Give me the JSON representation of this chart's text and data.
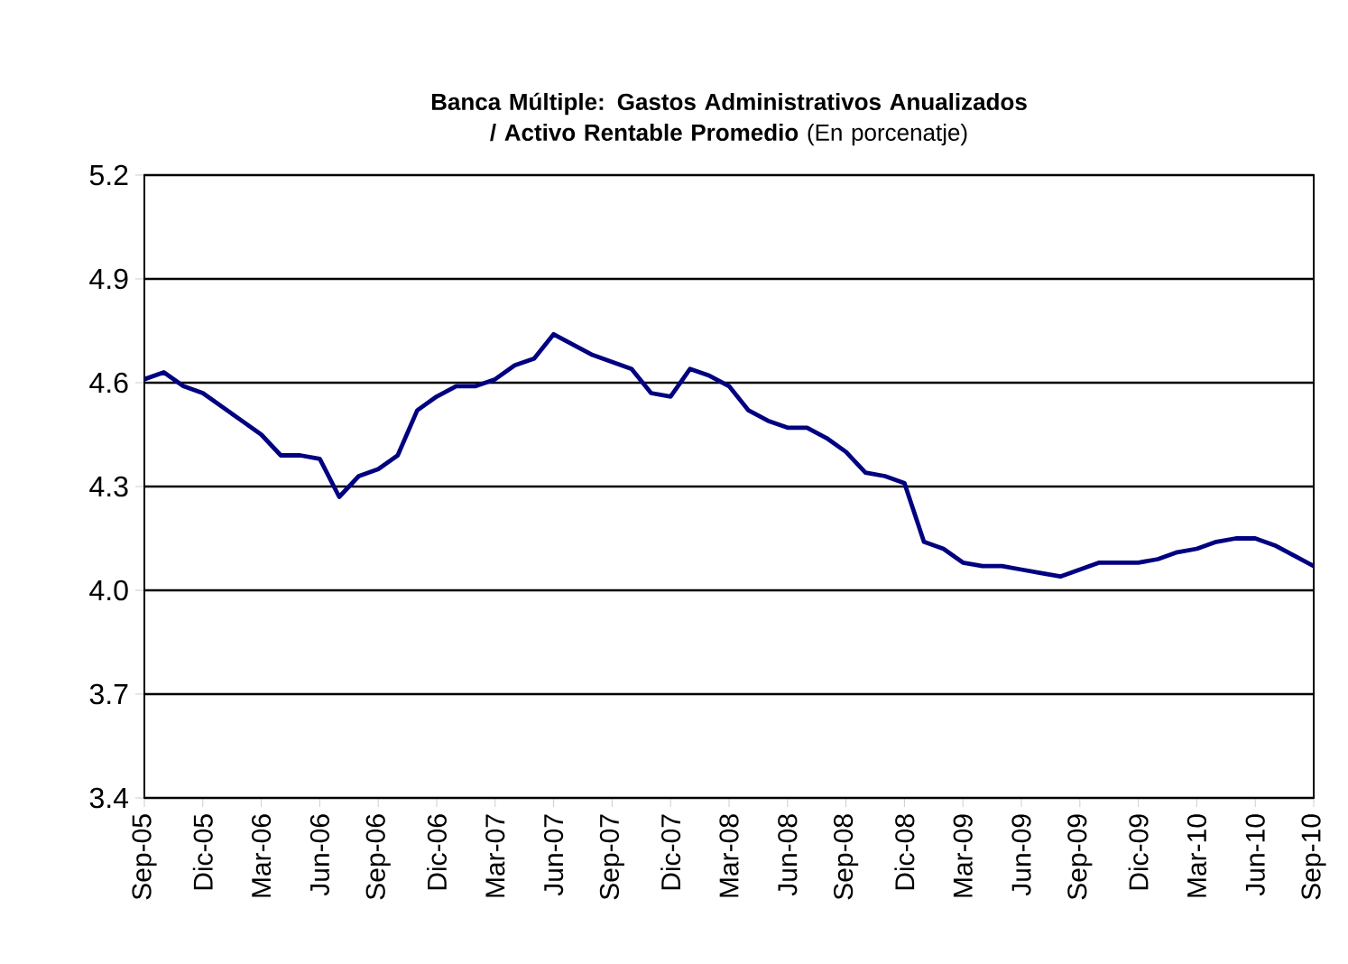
{
  "chart_data": {
    "type": "line",
    "title": "**Banca Múltiple: Gastos Administrativos Anualizados / Activo Rentable Promedio** (En porcenatje)",
    "categories": [
      "Sep-05",
      null,
      null,
      "Dic-05",
      null,
      null,
      "Mar-06",
      null,
      null,
      "Jun-06",
      null,
      null,
      "Sep-06",
      null,
      null,
      "Dic-06",
      null,
      null,
      "Mar-07",
      null,
      null,
      "Jun-07",
      null,
      null,
      "Sep-07",
      null,
      null,
      "Dic-07",
      null,
      null,
      "Mar-08",
      null,
      null,
      "Jun-08",
      null,
      null,
      "Sep-08",
      null,
      null,
      "Dic-08",
      null,
      null,
      "Mar-09",
      null,
      null,
      "Jun-09",
      null,
      null,
      "Sep-09",
      null,
      null,
      "Dic-09",
      null,
      null,
      "Mar-10",
      null,
      null,
      "Jun-10",
      null,
      null,
      "Sep-10"
    ],
    "series": [
      {
        "color": "#000080",
        "values": [
          4.61,
          4.63,
          4.59,
          4.57,
          4.53,
          4.49,
          4.45,
          4.39,
          4.39,
          4.38,
          4.27,
          4.33,
          4.35,
          4.39,
          4.52,
          4.56,
          4.59,
          4.59,
          4.61,
          4.65,
          4.67,
          4.74,
          4.71,
          4.68,
          4.66,
          4.64,
          4.57,
          4.56,
          4.64,
          4.62,
          4.59,
          4.52,
          4.49,
          4.47,
          4.47,
          4.44,
          4.4,
          4.34,
          4.33,
          4.31,
          4.14,
          4.12,
          4.08,
          4.07,
          4.07,
          4.06,
          4.05,
          4.04,
          4.06,
          4.08,
          4.08,
          4.08,
          4.09,
          4.11,
          4.12,
          4.14,
          4.15,
          4.15,
          4.13,
          4.1,
          4.07
        ]
      }
    ],
    "ylim": [
      3.4,
      5.2
    ],
    "yticks": [
      {
        "value": 3.4,
        "label": "3.4"
      },
      {
        "value": 3.7,
        "label": "3.7"
      },
      {
        "value": 4.0,
        "label": "4.0"
      },
      {
        "value": 4.3,
        "label": "4.3"
      },
      {
        "value": 4.6,
        "label": "4.6"
      },
      {
        "value": 4.9,
        "label": "4.9"
      },
      {
        "value": 5.2,
        "label": "5.2"
      }
    ],
    "grid": "y",
    "line_style": "solid",
    "marker": "none"
  }
}
